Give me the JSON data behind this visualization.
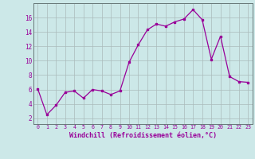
{
  "x": [
    0,
    1,
    2,
    3,
    4,
    5,
    6,
    7,
    8,
    9,
    10,
    11,
    12,
    13,
    14,
    15,
    16,
    17,
    18,
    19,
    20,
    21,
    22,
    23
  ],
  "y": [
    6.1,
    2.5,
    3.8,
    5.6,
    5.8,
    4.8,
    6.0,
    5.8,
    5.3,
    5.8,
    9.8,
    12.2,
    14.3,
    15.1,
    14.8,
    15.4,
    15.8,
    17.1,
    15.7,
    10.2,
    13.4,
    7.8,
    7.1,
    7.0
  ],
  "line_color": "#990099",
  "marker": "s",
  "marker_size": 2,
  "bg_color": "#cce8e8",
  "grid_color": "#aabbbb",
  "xlabel": "Windchill (Refroidissement éolien,°C)",
  "xlabel_color": "#990099",
  "tick_color": "#990099",
  "yticks": [
    2,
    4,
    6,
    8,
    10,
    12,
    14,
    16
  ],
  "xlim": [
    -0.5,
    23.5
  ],
  "ylim": [
    1.2,
    18.0
  ]
}
